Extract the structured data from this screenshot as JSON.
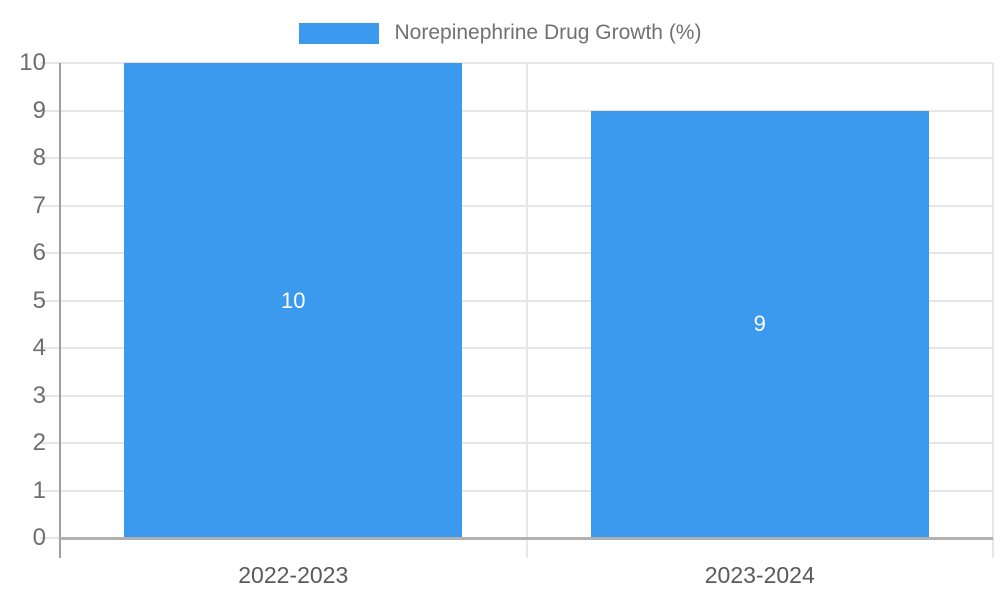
{
  "chart_data": {
    "type": "bar",
    "title": "",
    "legend_entries": [
      {
        "label": "Norepinephrine Drug Growth (%)",
        "color": "#3b99ee"
      }
    ],
    "legend_position": "top-center",
    "categories": [
      "2022-2023",
      "2023-2024"
    ],
    "series": [
      {
        "name": "Norepinephrine Drug Growth (%)",
        "values": [
          10,
          9
        ],
        "data_labels": [
          "10",
          "9"
        ]
      }
    ],
    "xlabel": "",
    "ylabel": "",
    "ylim": [
      0,
      10
    ],
    "y_ticks": [
      "0",
      "1",
      "2",
      "3",
      "4",
      "5",
      "6",
      "7",
      "8",
      "9",
      "10"
    ],
    "grid": "on",
    "colors": {
      "bar": "#3b99ee",
      "gridline": "#e6e6e6",
      "x_axis": "#b0b0b0",
      "y_axis": "#a0a0a0",
      "y_tick_text": "#6e6e6e",
      "x_tick_text": "#5a5a5a",
      "legend_text": "#717171",
      "data_label_text": "#ffffff",
      "background": "#ffffff"
    }
  }
}
